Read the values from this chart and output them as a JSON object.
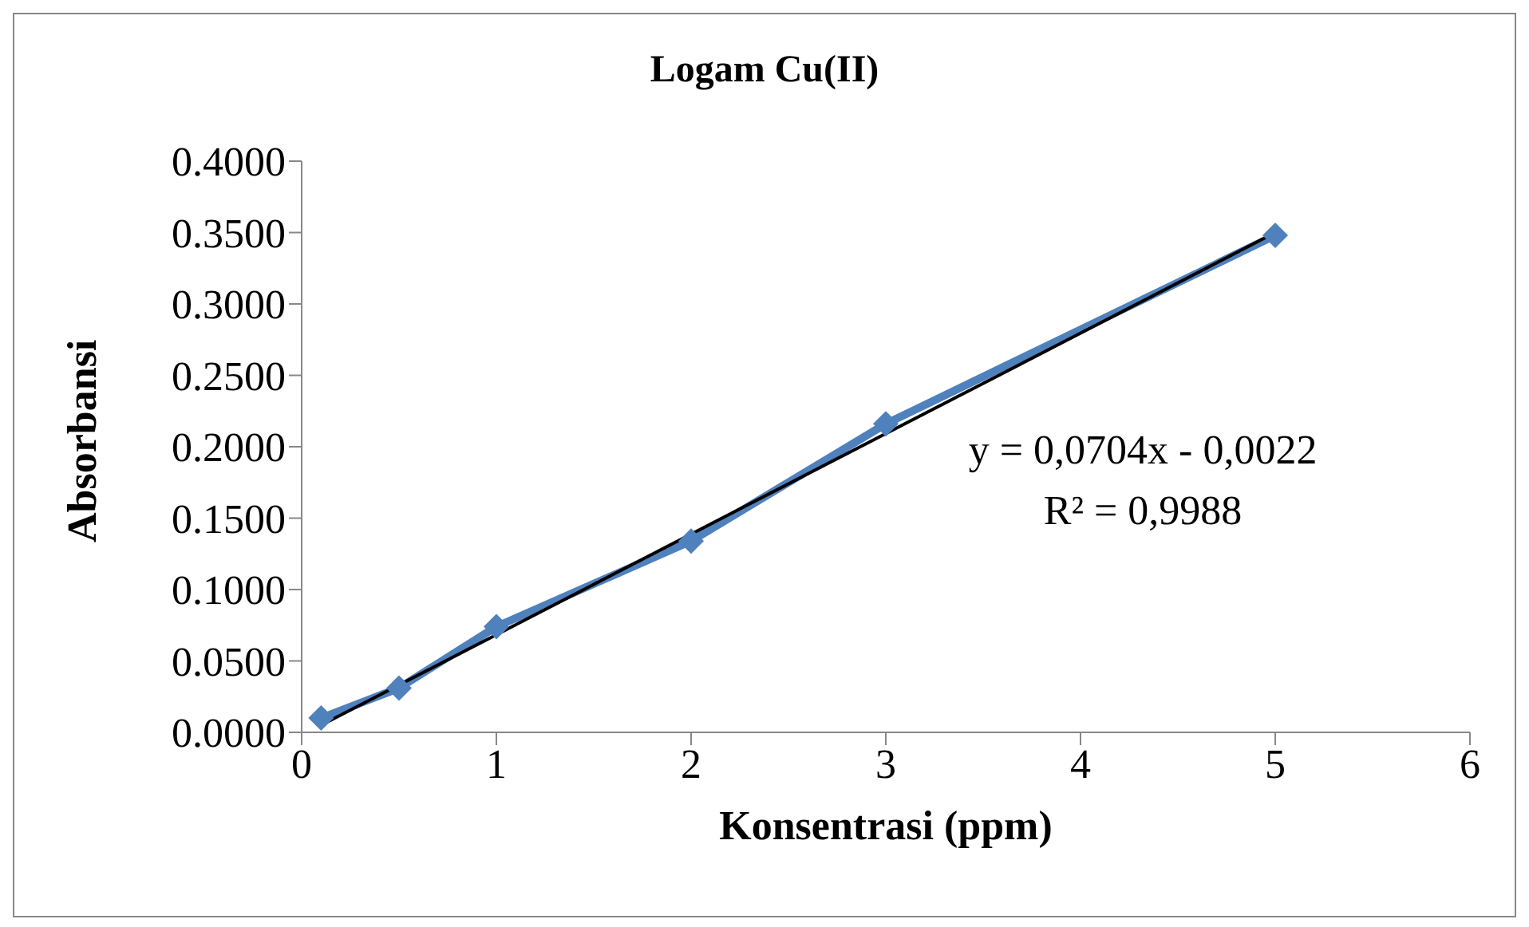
{
  "chart_data": {
    "type": "line",
    "title": "Logam Cu(II)",
    "xlabel": "Konsentrasi (ppm)",
    "ylabel": "Absorbansi",
    "xlim": [
      0,
      6
    ],
    "xticks": [
      0,
      1,
      2,
      3,
      4,
      5,
      6
    ],
    "ylim": [
      0,
      0.4
    ],
    "yticks": [
      {
        "value": 0,
        "label": "0.0000"
      },
      {
        "value": 0.05,
        "label": "0.0500"
      },
      {
        "value": 0.1,
        "label": "0.1000"
      },
      {
        "value": 0.15,
        "label": "0.1500"
      },
      {
        "value": 0.2,
        "label": "0.2000"
      },
      {
        "value": 0.25,
        "label": "0.2500"
      },
      {
        "value": 0.3,
        "label": "0.3000"
      },
      {
        "value": 0.35,
        "label": "0.3500"
      },
      {
        "value": 0.4,
        "label": "0.4000"
      }
    ],
    "series": [
      {
        "color": "#4f81bd",
        "marker": "diamond",
        "x": [
          0.1,
          0.5,
          1,
          2,
          3,
          5
        ],
        "values": [
          0.01,
          0.031,
          0.074,
          0.134,
          0.216,
          0.348
        ]
      },
      {
        "color": "#000000",
        "marker": "none",
        "x": [
          0.1,
          5
        ],
        "values": [
          0.005,
          0.35
        ]
      }
    ],
    "annotations": [
      "y = 0,0704x - 0,0022",
      "R² = 0,9988"
    ]
  }
}
